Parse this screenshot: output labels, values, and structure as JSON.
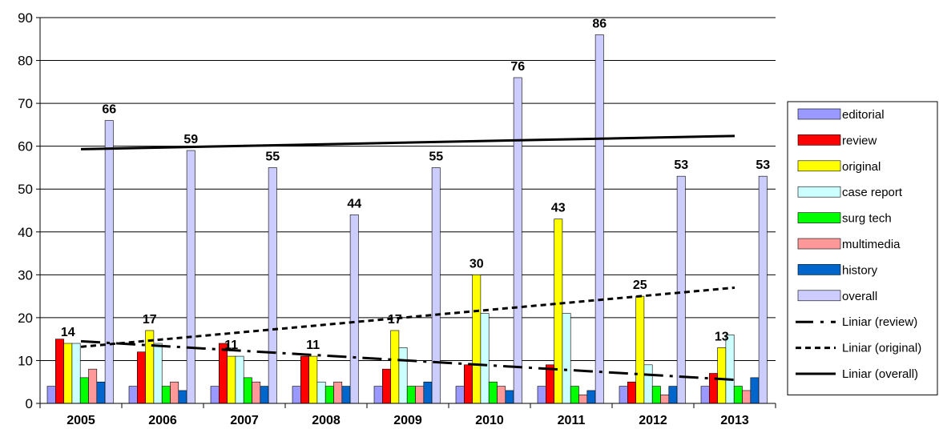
{
  "chart_data": {
    "type": "bar",
    "categories": [
      "2005",
      "2006",
      "2007",
      "2008",
      "2009",
      "2010",
      "2011",
      "2012",
      "2013"
    ],
    "ylim": [
      0,
      90
    ],
    "yticks": [
      0,
      10,
      20,
      30,
      40,
      50,
      60,
      70,
      80,
      90
    ],
    "grid": true,
    "legend_position": "right",
    "series": [
      {
        "name": "editorial",
        "color": "#9999ff",
        "values": [
          4,
          4,
          4,
          4,
          4,
          4,
          4,
          4,
          4
        ]
      },
      {
        "name": "review",
        "color": "#ff0000",
        "values": [
          15,
          12,
          14,
          11,
          8,
          9,
          9,
          5,
          7
        ]
      },
      {
        "name": "original",
        "color": "#ffff00",
        "values": [
          14,
          17,
          11,
          11,
          17,
          30,
          43,
          25,
          13
        ]
      },
      {
        "name": "case report",
        "color": "#ccffff",
        "values": [
          14,
          14,
          11,
          5,
          13,
          21,
          21,
          9,
          16
        ]
      },
      {
        "name": "surg tech",
        "color": "#00ff00",
        "values": [
          6,
          4,
          6,
          4,
          4,
          5,
          4,
          4,
          4
        ]
      },
      {
        "name": "multimedia",
        "color": "#ff9999",
        "values": [
          8,
          5,
          5,
          5,
          4,
          4,
          2,
          2,
          3
        ]
      },
      {
        "name": "history",
        "color": "#0066cc",
        "values": [
          5,
          3,
          4,
          4,
          5,
          3,
          3,
          4,
          6
        ]
      },
      {
        "name": "overall",
        "color": "#ccccff",
        "values": [
          66,
          59,
          55,
          44,
          55,
          76,
          86,
          53,
          53
        ]
      }
    ],
    "data_labels": [
      {
        "series": "original",
        "category": "2005",
        "text": "14"
      },
      {
        "series": "original",
        "category": "2006",
        "text": "17"
      },
      {
        "series": "original",
        "category": "2007",
        "text": "11"
      },
      {
        "series": "original",
        "category": "2008",
        "text": "11"
      },
      {
        "series": "original",
        "category": "2009",
        "text": "17"
      },
      {
        "series": "original",
        "category": "2010",
        "text": "30"
      },
      {
        "series": "original",
        "category": "2011",
        "text": "43"
      },
      {
        "series": "original",
        "category": "2012",
        "text": "25"
      },
      {
        "series": "original",
        "category": "2013",
        "text": "13"
      },
      {
        "series": "overall",
        "category": "2005",
        "text": "66"
      },
      {
        "series": "overall",
        "category": "2006",
        "text": "59"
      },
      {
        "series": "overall",
        "category": "2007",
        "text": "55"
      },
      {
        "series": "overall",
        "category": "2008",
        "text": "44"
      },
      {
        "series": "overall",
        "category": "2009",
        "text": "55"
      },
      {
        "series": "overall",
        "category": "2010",
        "text": "76"
      },
      {
        "series": "overall",
        "category": "2011",
        "text": "86"
      },
      {
        "series": "overall",
        "category": "2012",
        "text": "53"
      },
      {
        "series": "overall",
        "category": "2013",
        "text": "53"
      }
    ],
    "trendlines": [
      {
        "name": "Liniar (review)",
        "style": "dash-dot",
        "start": 14.5,
        "end": 5.5
      },
      {
        "name": "Liniar (original)",
        "style": "dashed",
        "start": 13.2,
        "end": 27
      },
      {
        "name": "Liniar (overall)",
        "style": "solid",
        "start": 59.3,
        "end": 62.4
      }
    ]
  }
}
